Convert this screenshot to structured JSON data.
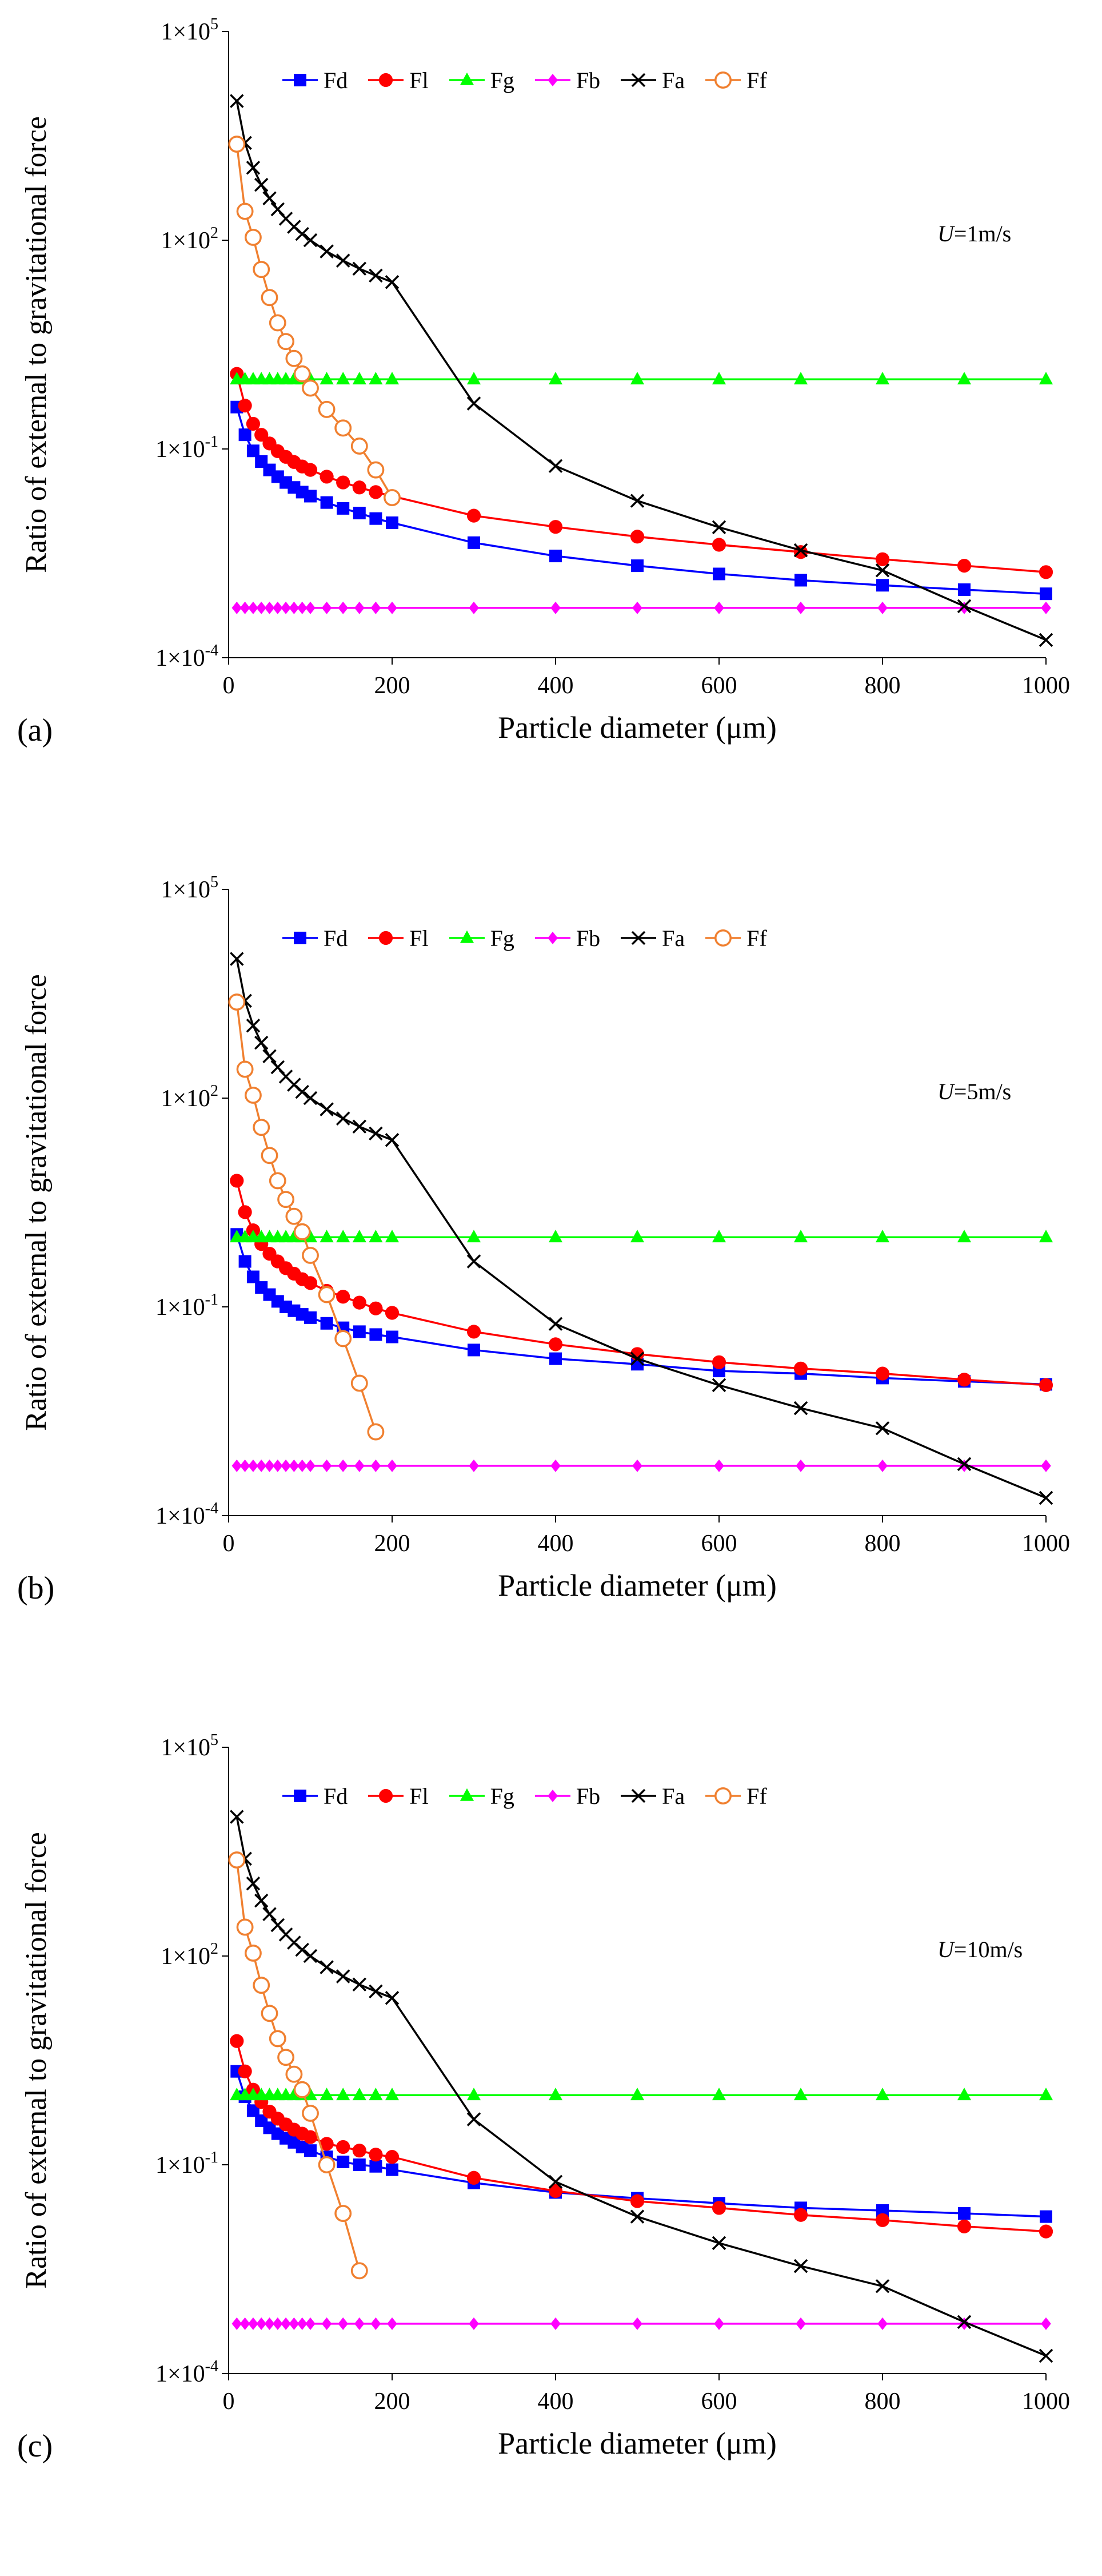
{
  "figure": {
    "xlabel": "Particle diameter (μm)",
    "ylabel": "Ratio of external to gravitational force",
    "xticks": [
      "0",
      "200",
      "400",
      "600",
      "800",
      "1000"
    ],
    "ytick_base": "1×10",
    "ytick_exponents": [
      "-4",
      "-1",
      "2",
      "5"
    ]
  },
  "legend": [
    {
      "name": "Fd",
      "color": "#0000FF",
      "marker": "square"
    },
    {
      "name": "Fl",
      "color": "#FF0000",
      "marker": "circle"
    },
    {
      "name": "Fg",
      "color": "#00FF00",
      "marker": "triangle"
    },
    {
      "name": "Fb",
      "color": "#FF00FF",
      "marker": "diamond"
    },
    {
      "name": "Fa",
      "color": "#000000",
      "marker": "x"
    },
    {
      "name": "Ff",
      "color": "#F08030",
      "marker": "open-circle"
    }
  ],
  "panels": [
    {
      "label": "(a)",
      "u_symbol": "U",
      "u_value": "=1m/s"
    },
    {
      "label": "(b)",
      "u_symbol": "U",
      "u_value": "=5m/s"
    },
    {
      "label": "(c)",
      "u_symbol": "U",
      "u_value": "=10m/s"
    }
  ],
  "chart_data": [
    {
      "type": "line",
      "title": "U=1m/s",
      "xlabel": "Particle diameter (μm)",
      "ylabel": "Ratio of external to gravitational force",
      "xlim": [
        0,
        1000
      ],
      "ylim": [
        0.0001,
        100000
      ],
      "yscale": "log",
      "x": [
        10,
        20,
        30,
        40,
        50,
        60,
        70,
        80,
        90,
        100,
        120,
        140,
        160,
        180,
        200,
        300,
        400,
        500,
        600,
        700,
        800,
        900,
        1000
      ],
      "series": [
        {
          "name": "Fd",
          "values": [
            0.4,
            0.16,
            0.094,
            0.066,
            0.05,
            0.04,
            0.033,
            0.028,
            0.024,
            0.021,
            0.017,
            0.014,
            0.012,
            0.01,
            0.0087,
            0.0045,
            0.0029,
            0.0021,
            0.0016,
            0.0013,
            0.0011,
            0.00095,
            0.00083
          ]
        },
        {
          "name": "Fl",
          "values": [
            1.2,
            0.42,
            0.23,
            0.16,
            0.12,
            0.093,
            0.077,
            0.065,
            0.056,
            0.05,
            0.04,
            0.033,
            0.028,
            0.024,
            0.021,
            0.011,
            0.0076,
            0.0055,
            0.0042,
            0.0033,
            0.0026,
            0.0021,
            0.0017
          ]
        },
        {
          "name": "Fg",
          "values": [
            1,
            1,
            1,
            1,
            1,
            1,
            1,
            1,
            1,
            1,
            1,
            1,
            1,
            1,
            1,
            1,
            1,
            1,
            1,
            1,
            1,
            1,
            1
          ]
        },
        {
          "name": "Fb",
          "values": [
            0.00052,
            0.00052,
            0.00052,
            0.00052,
            0.00052,
            0.00052,
            0.00052,
            0.00052,
            0.00052,
            0.00052,
            0.00052,
            0.00052,
            0.00052,
            0.00052,
            0.00052,
            0.00052,
            0.00052,
            0.00052,
            0.00052,
            0.00052,
            0.00052,
            0.00052,
            0.00052
          ]
        },
        {
          "name": "Fa",
          "values": [
            10000,
            2500,
            1100,
            625,
            400,
            278,
            204,
            156,
            123,
            100,
            69,
            51,
            39,
            31,
            25,
            0.45,
            0.057,
            0.018,
            0.0075,
            0.0035,
            0.0018,
            0.00055,
            0.00018
          ]
        },
        {
          "name": "Ff",
          "values": [
            2400,
            260,
            110,
            38,
            15,
            6.5,
            3.5,
            2.0,
            1.2,
            0.75,
            0.37,
            0.2,
            0.11,
            0.05,
            0.02,
            null,
            null,
            null,
            null,
            null,
            null,
            null,
            null
          ]
        }
      ]
    },
    {
      "type": "line",
      "title": "U=5m/s",
      "xlabel": "Particle diameter (μm)",
      "ylabel": "Ratio of external to gravitational force",
      "xlim": [
        0,
        1000
      ],
      "ylim": [
        0.0001,
        100000
      ],
      "yscale": "log",
      "x": [
        10,
        20,
        30,
        40,
        50,
        60,
        70,
        80,
        90,
        100,
        120,
        140,
        160,
        180,
        200,
        300,
        400,
        500,
        600,
        700,
        800,
        900,
        1000
      ],
      "series": [
        {
          "name": "Fd",
          "values": [
            1.1,
            0.45,
            0.27,
            0.19,
            0.15,
            0.12,
            0.1,
            0.088,
            0.078,
            0.07,
            0.058,
            0.05,
            0.044,
            0.04,
            0.037,
            0.024,
            0.018,
            0.015,
            0.012,
            0.011,
            0.0095,
            0.0085,
            0.0077
          ]
        },
        {
          "name": "Fl",
          "values": [
            6.5,
            2.3,
            1.26,
            0.8,
            0.58,
            0.45,
            0.36,
            0.3,
            0.25,
            0.22,
            0.17,
            0.14,
            0.115,
            0.095,
            0.082,
            0.044,
            0.029,
            0.021,
            0.016,
            0.013,
            0.011,
            0.009,
            0.0075
          ]
        },
        {
          "name": "Fg",
          "values": [
            1,
            1,
            1,
            1,
            1,
            1,
            1,
            1,
            1,
            1,
            1,
            1,
            1,
            1,
            1,
            1,
            1,
            1,
            1,
            1,
            1,
            1,
            1
          ]
        },
        {
          "name": "Fb",
          "values": [
            0.00052,
            0.00052,
            0.00052,
            0.00052,
            0.00052,
            0.00052,
            0.00052,
            0.00052,
            0.00052,
            0.00052,
            0.00052,
            0.00052,
            0.00052,
            0.00052,
            0.00052,
            0.00052,
            0.00052,
            0.00052,
            0.00052,
            0.00052,
            0.00052,
            0.00052,
            0.00052
          ]
        },
        {
          "name": "Fa",
          "values": [
            10000,
            2500,
            1100,
            625,
            400,
            278,
            204,
            156,
            123,
            100,
            69,
            51,
            39,
            31,
            25,
            0.45,
            0.057,
            0.018,
            0.0075,
            0.0035,
            0.0018,
            0.00055,
            0.00018
          ]
        },
        {
          "name": "Ff",
          "values": [
            2400,
            260,
            110,
            38,
            15,
            6.5,
            3.5,
            2.0,
            1.2,
            0.55,
            0.15,
            0.035,
            0.008,
            0.0016,
            null,
            null,
            null,
            null,
            null,
            null,
            null,
            null,
            null
          ]
        }
      ]
    },
    {
      "type": "line",
      "title": "U=10m/s",
      "xlabel": "Particle diameter (μm)",
      "ylabel": "Ratio of external to gravitational force",
      "xlim": [
        0,
        1000
      ],
      "ylim": [
        0.0001,
        100000
      ],
      "yscale": "log",
      "x": [
        10,
        20,
        30,
        40,
        50,
        60,
        70,
        80,
        90,
        100,
        120,
        140,
        160,
        180,
        200,
        300,
        400,
        500,
        600,
        700,
        800,
        900,
        1000
      ],
      "series": [
        {
          "name": "Fd",
          "values": [
            2.2,
            0.95,
            0.6,
            0.43,
            0.34,
            0.28,
            0.24,
            0.21,
            0.18,
            0.16,
            0.13,
            0.11,
            0.1,
            0.095,
            0.085,
            0.055,
            0.04,
            0.033,
            0.028,
            0.024,
            0.022,
            0.02,
            0.018
          ]
        },
        {
          "name": "Fl",
          "values": [
            6.0,
            2.2,
            1.2,
            0.8,
            0.58,
            0.46,
            0.38,
            0.32,
            0.28,
            0.25,
            0.2,
            0.18,
            0.16,
            0.14,
            0.13,
            0.065,
            0.042,
            0.03,
            0.024,
            0.019,
            0.016,
            0.013,
            0.011
          ]
        },
        {
          "name": "Fg",
          "values": [
            1,
            1,
            1,
            1,
            1,
            1,
            1,
            1,
            1,
            1,
            1,
            1,
            1,
            1,
            1,
            1,
            1,
            1,
            1,
            1,
            1,
            1,
            1
          ]
        },
        {
          "name": "Fb",
          "values": [
            0.00052,
            0.00052,
            0.00052,
            0.00052,
            0.00052,
            0.00052,
            0.00052,
            0.00052,
            0.00052,
            0.00052,
            0.00052,
            0.00052,
            0.00052,
            0.00052,
            0.00052,
            0.00052,
            0.00052,
            0.00052,
            0.00052,
            0.00052,
            0.00052,
            0.00052,
            0.00052
          ]
        },
        {
          "name": "Fa",
          "values": [
            10000,
            2500,
            1100,
            625,
            400,
            278,
            204,
            156,
            123,
            100,
            69,
            51,
            39,
            31,
            25,
            0.45,
            0.057,
            0.018,
            0.0075,
            0.0035,
            0.0018,
            0.00055,
            0.00018
          ]
        },
        {
          "name": "Ff",
          "values": [
            2400,
            260,
            110,
            38,
            15,
            6.5,
            3.5,
            2.0,
            1.2,
            0.55,
            0.1,
            0.02,
            0.003,
            null,
            null,
            null,
            null,
            null,
            null,
            null,
            null,
            null,
            null
          ]
        }
      ]
    }
  ]
}
